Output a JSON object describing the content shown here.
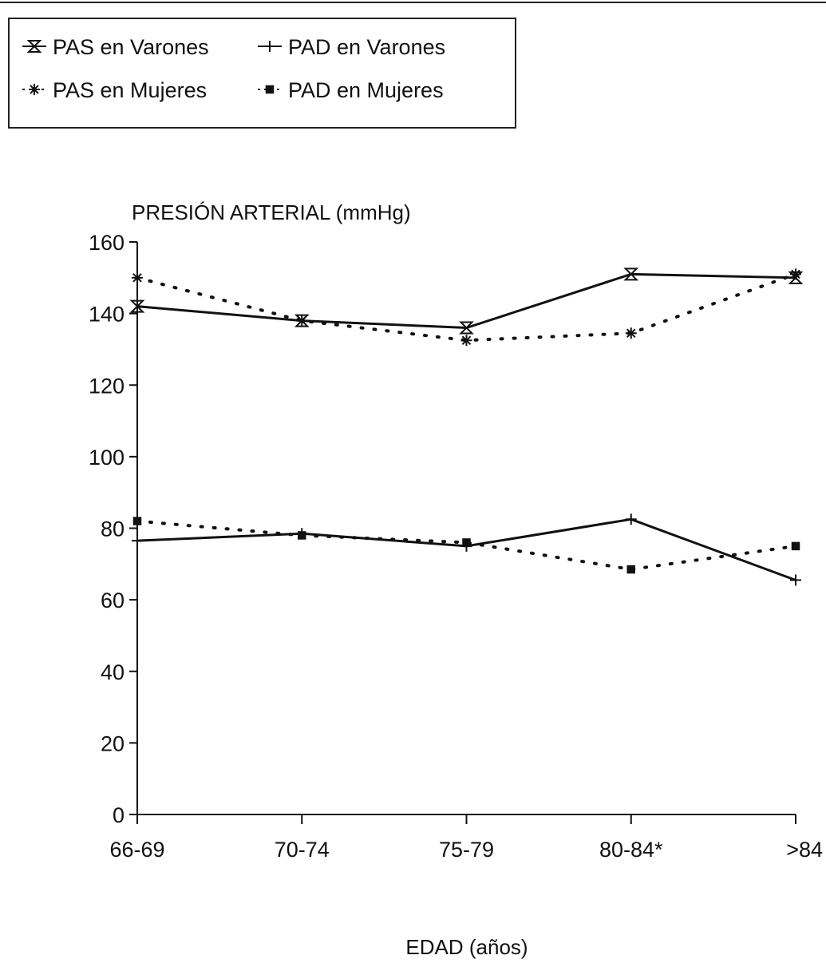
{
  "chart_data": {
    "type": "line",
    "title": "",
    "ylabel": "PRESIÓN ARTERIAL (mmHg)",
    "xlabel": "EDAD (años)",
    "categories": [
      "66-69",
      "70-74",
      "75-79",
      "80-84*",
      ">84"
    ],
    "ylim": [
      0,
      160
    ],
    "yticks": [
      0,
      20,
      40,
      60,
      80,
      100,
      120,
      140,
      160
    ],
    "grid": false,
    "legend_position": "top-left",
    "series": [
      {
        "name": "PAS en Varones",
        "values": [
          142,
          138,
          136,
          151,
          150
        ],
        "marker": "hourglass",
        "line": "solid"
      },
      {
        "name": "PAD en Varones",
        "values": [
          76.5,
          78.5,
          75,
          82.5,
          65.5
        ],
        "marker": "plus",
        "line": "solid"
      },
      {
        "name": "PAS en Mujeres",
        "values": [
          150,
          138,
          132.5,
          134.5,
          151
        ],
        "marker": "asterisk",
        "line": "dotted"
      },
      {
        "name": "PAD en Mujeres",
        "values": [
          82,
          78,
          76,
          68.5,
          75
        ],
        "marker": "square",
        "line": "dotted"
      }
    ],
    "legend_layout": [
      [
        0,
        1
      ],
      [
        2,
        3
      ]
    ]
  }
}
